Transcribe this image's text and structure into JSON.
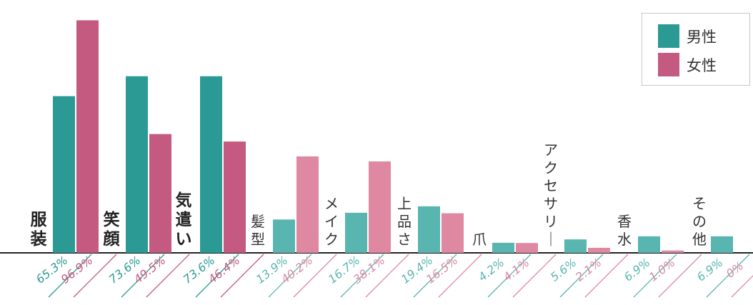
{
  "chart_data": {
    "type": "bar",
    "categories": [
      "服装",
      "笑顔",
      "気遣い",
      "髪型",
      "メイク",
      "上品さ",
      "爪",
      "アクセサリー",
      "香水",
      "その他"
    ],
    "series": [
      {
        "name": "男性",
        "values": [
          65.3,
          73.6,
          73.6,
          13.9,
          16.7,
          19.4,
          4.2,
          5.6,
          6.9,
          6.9
        ],
        "labels": [
          "65.3%",
          "73.6%",
          "73.6%",
          "13.9%",
          "16.7%",
          "19.4%",
          "4.2%",
          "5.6%",
          "6.9%",
          "6.9%"
        ]
      },
      {
        "name": "女性",
        "values": [
          96.9,
          49.5,
          46.4,
          40.2,
          38.1,
          16.5,
          4.1,
          2.1,
          1.0,
          0
        ],
        "labels": [
          "96.9%",
          "49.5%",
          "46.4%",
          "40.2%",
          "38.1%",
          "16.5%",
          "4.1%",
          "2.1%",
          "1.0%",
          "0%"
        ]
      }
    ],
    "ylim": [
      0,
      100
    ],
    "grid": false,
    "legend_position": "top-right"
  },
  "colors": {
    "male_strong": "#2b9a94",
    "female_strong": "#c45a7f",
    "male_light": "#59b5b0",
    "female_light": "#df88a2",
    "axis": "#222222",
    "category_text": "#333333"
  },
  "legend": {
    "male_label": "男性",
    "female_label": "女性"
  }
}
